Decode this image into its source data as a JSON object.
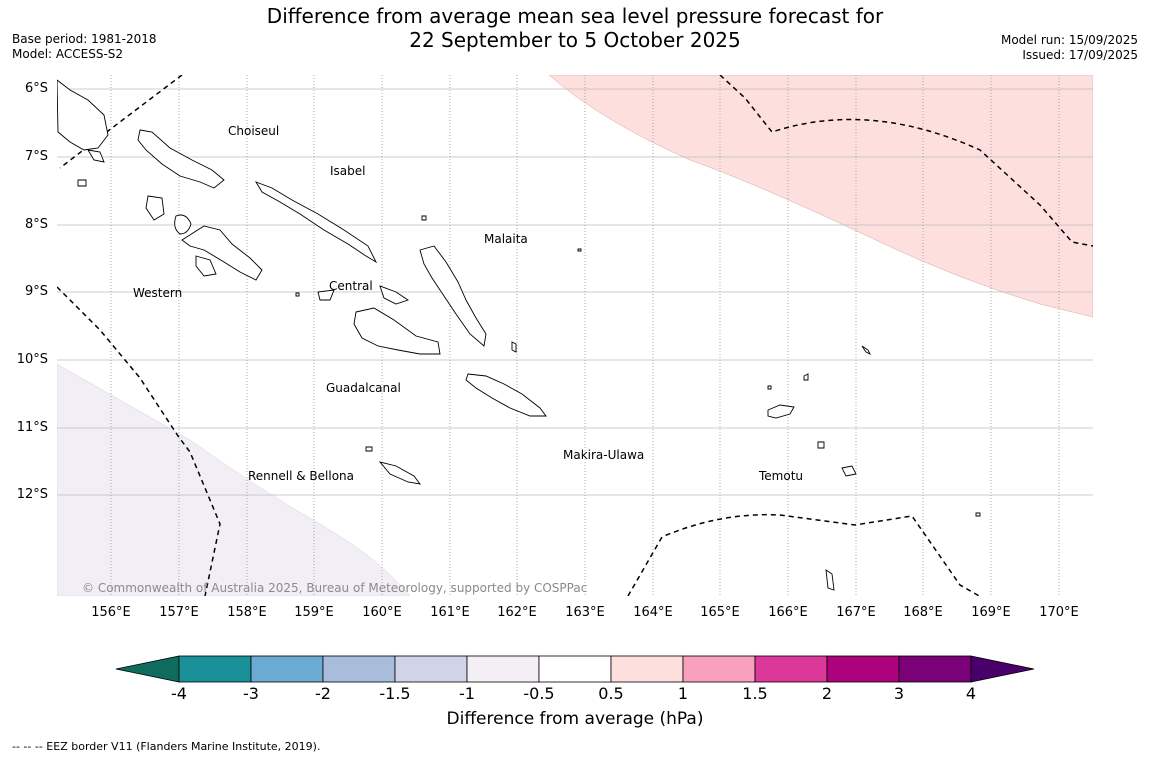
{
  "title": {
    "line1": "Difference from average mean sea level pressure forecast for",
    "line2": "22 September to 5 October 2025"
  },
  "meta": {
    "base_period": "Base period: 1981-2018",
    "model": "Model: ACCESS-S2",
    "model_run": "Model run: 15/09/2025",
    "issued": "Issued: 17/09/2025"
  },
  "map": {
    "lat_labels": [
      "6°S",
      "7°S",
      "8°S",
      "9°S",
      "10°S",
      "11°S",
      "12°S"
    ],
    "lon_labels": [
      "156°E",
      "157°E",
      "158°E",
      "159°E",
      "160°E",
      "161°E",
      "162°E",
      "163°E",
      "164°E",
      "165°E",
      "166°E",
      "167°E",
      "168°E",
      "169°E",
      "170°E"
    ],
    "provinces": [
      "Choiseul",
      "Isabel",
      "Malaita",
      "Western",
      "Central",
      "Guadalcanal",
      "Makira-Ulawa",
      "Rennell & Bellona",
      "Temotu"
    ],
    "copyright": "© Commonwealth of Australia 2025, Bureau of Meteorology, supported by COSPPac",
    "anomaly_region_colors": {
      "positive_0_5_to_1": "#fddfde",
      "negative_minus1_to_minus0_5": "#f2eef6"
    }
  },
  "colorbar": {
    "label": "Difference from average (hPa)",
    "ticks": [
      "-4",
      "-3",
      "-2",
      "-1.5",
      "-1",
      "-0.5",
      "0.5",
      "1",
      "1.5",
      "2",
      "3",
      "4"
    ],
    "colors": [
      "#1a9198",
      "#6aaad3",
      "#a8bddc",
      "#d1d3e6",
      "#f3eff5",
      "#ffffff",
      "#fddfde",
      "#f8a0bd",
      "#dc389a",
      "#ae017e",
      "#7a0177"
    ],
    "under_color": "#0f6b5e",
    "over_color": "#49006a"
  },
  "footer": {
    "eez": "--  --  -- EEZ border V11 (Flanders Marine Institute, 2019)."
  }
}
